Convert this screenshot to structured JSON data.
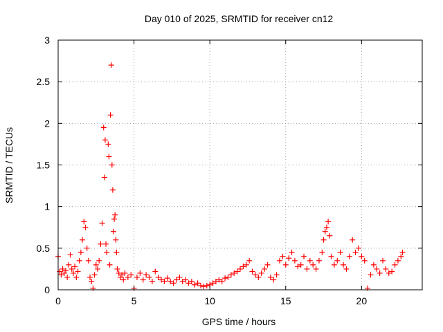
{
  "chart_data": {
    "type": "scatter",
    "title": "Day 010 of 2025, SRMTID for receiver cn12",
    "xlabel": "GPS time / hours",
    "ylabel": "SRMTID / TECUs",
    "xlim": [
      0,
      24
    ],
    "ylim": [
      0,
      3
    ],
    "xticks": [
      0,
      5,
      10,
      15,
      20
    ],
    "xtick_labels": [
      "0",
      "5",
      "10",
      "15",
      "20"
    ],
    "yticks": [
      0,
      0.5,
      1,
      1.5,
      2,
      2.5,
      3
    ],
    "ytick_labels": [
      "0",
      "0.5",
      "1",
      "1.5",
      "2",
      "2.5",
      "3"
    ],
    "grid": true,
    "marker": "+",
    "color": "#ff0000",
    "series": [
      {
        "name": "SRMTID",
        "x": [
          0.0,
          0.1,
          0.2,
          0.3,
          0.4,
          0.5,
          0.6,
          0.7,
          0.8,
          0.9,
          1.0,
          1.1,
          1.2,
          1.3,
          1.4,
          1.5,
          1.6,
          1.7,
          1.8,
          1.9,
          2.0,
          2.1,
          2.2,
          2.3,
          2.4,
          2.5,
          2.6,
          2.7,
          2.8,
          2.9,
          3.0,
          3.05,
          3.1,
          3.15,
          3.2,
          3.3,
          3.35,
          3.4,
          3.45,
          3.5,
          3.55,
          3.6,
          3.65,
          3.7,
          3.75,
          3.8,
          3.85,
          3.9,
          4.0,
          4.1,
          4.2,
          4.3,
          4.4,
          4.6,
          4.8,
          5.0,
          5.2,
          5.4,
          5.6,
          5.8,
          6.0,
          6.2,
          6.4,
          6.6,
          6.8,
          7.0,
          7.2,
          7.4,
          7.6,
          7.8,
          8.0,
          8.2,
          8.4,
          8.6,
          8.8,
          9.0,
          9.2,
          9.4,
          9.6,
          9.8,
          10.0,
          10.2,
          10.4,
          10.6,
          10.8,
          11.0,
          11.2,
          11.4,
          11.6,
          11.8,
          12.0,
          12.2,
          12.4,
          12.6,
          12.8,
          13.0,
          13.2,
          13.4,
          13.6,
          13.8,
          14.0,
          14.2,
          14.4,
          14.6,
          14.8,
          15.0,
          15.2,
          15.4,
          15.6,
          15.8,
          16.0,
          16.2,
          16.4,
          16.6,
          16.8,
          17.0,
          17.2,
          17.4,
          17.5,
          17.6,
          17.7,
          17.8,
          17.9,
          18.0,
          18.2,
          18.4,
          18.6,
          18.8,
          19.0,
          19.2,
          19.4,
          19.6,
          19.8,
          20.0,
          20.2,
          20.4,
          20.6,
          20.8,
          21.0,
          21.2,
          21.4,
          21.6,
          21.8,
          22.0,
          22.2,
          22.4,
          22.6,
          22.7
        ],
        "y": [
          0.4,
          0.22,
          0.18,
          0.25,
          0.2,
          0.23,
          0.15,
          0.3,
          0.42,
          0.25,
          0.2,
          0.28,
          0.15,
          0.22,
          0.35,
          0.45,
          0.6,
          0.82,
          0.75,
          0.5,
          0.35,
          0.15,
          0.1,
          0.02,
          0.18,
          0.3,
          0.25,
          0.35,
          0.55,
          0.8,
          1.95,
          1.35,
          1.8,
          0.55,
          0.45,
          1.75,
          1.6,
          0.3,
          2.1,
          2.7,
          1.5,
          1.2,
          0.7,
          0.85,
          0.9,
          0.6,
          0.45,
          0.25,
          0.2,
          0.15,
          0.18,
          0.12,
          0.2,
          0.15,
          0.18,
          0.02,
          0.15,
          0.2,
          0.12,
          0.18,
          0.15,
          0.1,
          0.22,
          0.15,
          0.12,
          0.1,
          0.14,
          0.1,
          0.08,
          0.12,
          0.15,
          0.1,
          0.12,
          0.08,
          0.1,
          0.06,
          0.08,
          0.05,
          0.04,
          0.05,
          0.06,
          0.08,
          0.1,
          0.12,
          0.1,
          0.14,
          0.15,
          0.18,
          0.2,
          0.22,
          0.25,
          0.28,
          0.3,
          0.35,
          0.22,
          0.18,
          0.15,
          0.2,
          0.25,
          0.3,
          0.15,
          0.12,
          0.18,
          0.35,
          0.4,
          0.3,
          0.38,
          0.45,
          0.35,
          0.28,
          0.3,
          0.4,
          0.25,
          0.35,
          0.3,
          0.25,
          0.35,
          0.45,
          0.6,
          0.7,
          0.75,
          0.82,
          0.65,
          0.4,
          0.3,
          0.35,
          0.45,
          0.3,
          0.25,
          0.4,
          0.6,
          0.45,
          0.5,
          0.4,
          0.35,
          0.02,
          0.18,
          0.3,
          0.25,
          0.2,
          0.35,
          0.25,
          0.2,
          0.22,
          0.3,
          0.35,
          0.4,
          0.45
        ]
      }
    ]
  }
}
